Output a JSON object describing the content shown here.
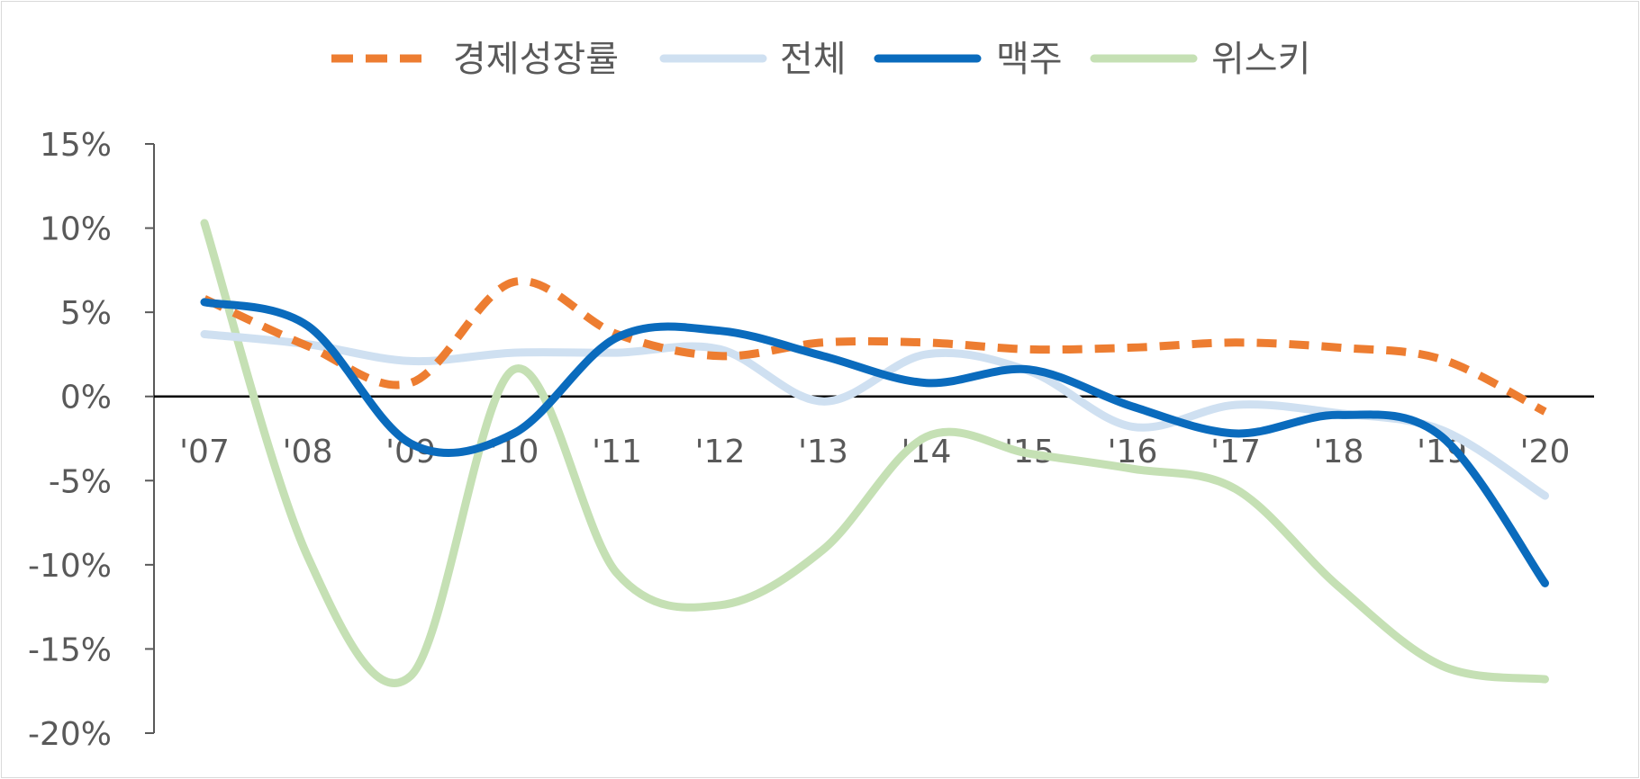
{
  "chart_data": {
    "type": "line",
    "title": "",
    "xlabel": "",
    "ylabel": "",
    "categories": [
      "'07",
      "'08",
      "'09",
      "'10",
      "'11",
      "'12",
      "'13",
      "'14",
      "'15",
      "'16",
      "'17",
      "'18",
      "'19",
      "'20"
    ],
    "ylim": [
      -20,
      15
    ],
    "yticks": [
      15,
      10,
      5,
      0,
      -5,
      -10,
      -15,
      -20
    ],
    "ytick_labels": [
      "15%",
      "10%",
      "5%",
      "0%",
      "-5%",
      "-10%",
      "-15%",
      "-20%"
    ],
    "legend_position": "top",
    "grid": false,
    "series": [
      {
        "name": "경제성장률",
        "color": "#ed7d31",
        "dashed": true,
        "width": 9,
        "values": [
          5.8,
          3.0,
          0.8,
          6.8,
          3.7,
          2.4,
          3.2,
          3.2,
          2.8,
          2.9,
          3.2,
          2.9,
          2.2,
          -0.9
        ]
      },
      {
        "name": "전체",
        "color": "#cfe0f1",
        "dashed": false,
        "width": 9,
        "values": [
          3.7,
          3.1,
          2.1,
          2.6,
          2.6,
          2.8,
          -0.3,
          2.5,
          1.5,
          -1.8,
          -0.5,
          -1.0,
          -2.0,
          -5.9
        ]
      },
      {
        "name": "맥주",
        "color": "#0a6bbd",
        "dashed": false,
        "width": 9,
        "values": [
          5.6,
          4.2,
          -2.8,
          -2.2,
          3.5,
          3.9,
          2.4,
          0.8,
          1.6,
          -0.6,
          -2.2,
          -1.1,
          -2.4,
          -11.1
        ]
      },
      {
        "name": "위스키",
        "color": "#c5e0b4",
        "dashed": false,
        "width": 9,
        "values": [
          10.3,
          -9.5,
          -16.6,
          1.6,
          -10.5,
          -12.4,
          -9.1,
          -2.4,
          -3.4,
          -4.3,
          -5.5,
          -11.3,
          -16.0,
          -16.8
        ]
      }
    ]
  }
}
